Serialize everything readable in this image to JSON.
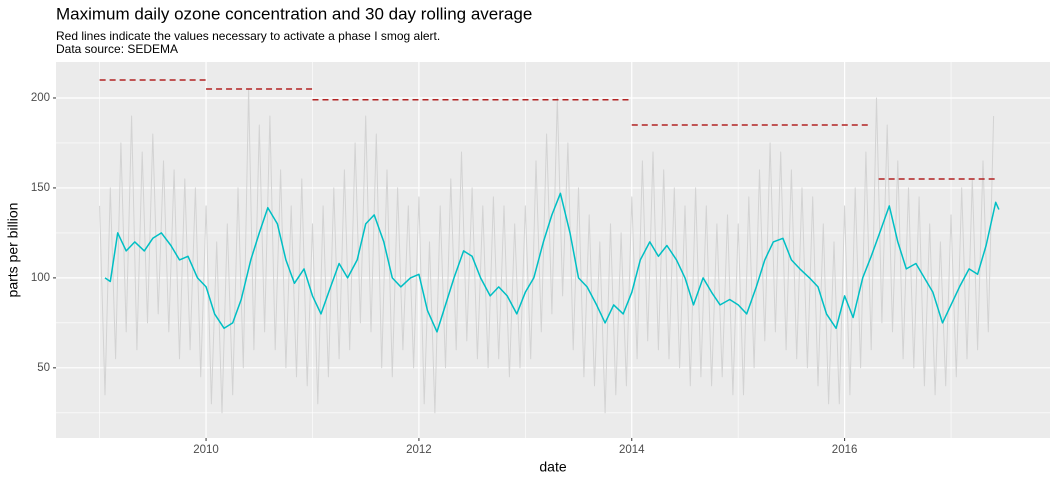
{
  "chart_data": {
    "type": "line",
    "title": "Maximum daily ozone concentration and 30 day rolling average",
    "subtitle": [
      "Red lines indicate the values necessary to activate a phase I smog alert.",
      "Data source: SEDEMA"
    ],
    "xlabel": "date",
    "ylabel": "parts per billion",
    "xlim": [
      2008.59,
      2017.93
    ],
    "ylim": [
      11,
      220
    ],
    "xticks": [
      2010,
      2012,
      2014,
      2016
    ],
    "yticks": [
      50,
      100,
      150,
      200
    ],
    "grid": true,
    "series": [
      {
        "name": "daily maximum",
        "color": "#d3d3d3",
        "x": [
          2009.0,
          2009.05,
          2009.1,
          2009.15,
          2009.2,
          2009.25,
          2009.3,
          2009.35,
          2009.4,
          2009.45,
          2009.5,
          2009.55,
          2009.6,
          2009.65,
          2009.7,
          2009.75,
          2009.8,
          2009.85,
          2009.9,
          2009.95,
          2010.0,
          2010.05,
          2010.1,
          2010.15,
          2010.2,
          2010.25,
          2010.3,
          2010.35,
          2010.4,
          2010.45,
          2010.5,
          2010.55,
          2010.6,
          2010.65,
          2010.7,
          2010.75,
          2010.8,
          2010.85,
          2010.9,
          2010.95,
          2011.0,
          2011.05,
          2011.1,
          2011.15,
          2011.2,
          2011.25,
          2011.3,
          2011.35,
          2011.4,
          2011.45,
          2011.5,
          2011.55,
          2011.6,
          2011.65,
          2011.7,
          2011.75,
          2011.8,
          2011.85,
          2011.9,
          2011.95,
          2012.0,
          2012.05,
          2012.1,
          2012.15,
          2012.2,
          2012.25,
          2012.3,
          2012.35,
          2012.4,
          2012.45,
          2012.5,
          2012.55,
          2012.6,
          2012.65,
          2012.7,
          2012.75,
          2012.8,
          2012.85,
          2012.9,
          2012.95,
          2013.0,
          2013.05,
          2013.1,
          2013.15,
          2013.2,
          2013.25,
          2013.3,
          2013.35,
          2013.4,
          2013.45,
          2013.5,
          2013.55,
          2013.6,
          2013.65,
          2013.7,
          2013.75,
          2013.8,
          2013.85,
          2013.9,
          2013.95,
          2014.0,
          2014.05,
          2014.1,
          2014.15,
          2014.2,
          2014.25,
          2014.3,
          2014.35,
          2014.4,
          2014.45,
          2014.5,
          2014.55,
          2014.6,
          2014.65,
          2014.7,
          2014.75,
          2014.8,
          2014.85,
          2014.9,
          2014.95,
          2015.0,
          2015.05,
          2015.1,
          2015.15,
          2015.2,
          2015.25,
          2015.3,
          2015.35,
          2015.4,
          2015.45,
          2015.5,
          2015.55,
          2015.6,
          2015.65,
          2015.7,
          2015.75,
          2015.8,
          2015.85,
          2015.9,
          2015.95,
          2016.0,
          2016.05,
          2016.1,
          2016.15,
          2016.2,
          2016.25,
          2016.3,
          2016.35,
          2016.4,
          2016.45,
          2016.5,
          2016.55,
          2016.6,
          2016.65,
          2016.7,
          2016.75,
          2016.8,
          2016.85,
          2016.9,
          2016.95,
          2017.0,
          2017.05,
          2017.1,
          2017.15,
          2017.2,
          2017.25,
          2017.3,
          2017.35,
          2017.4
        ],
        "values": [
          140,
          35,
          150,
          55,
          175,
          70,
          190,
          60,
          170,
          75,
          180,
          80,
          165,
          70,
          160,
          55,
          155,
          60,
          150,
          45,
          140,
          30,
          120,
          25,
          130,
          35,
          150,
          50,
          205,
          60,
          185,
          70,
          190,
          60,
          160,
          50,
          140,
          45,
          155,
          40,
          130,
          30,
          140,
          45,
          150,
          55,
          160,
          60,
          175,
          75,
          190,
          70,
          180,
          50,
          160,
          45,
          150,
          60,
          140,
          50,
          145,
          30,
          120,
          25,
          140,
          50,
          155,
          60,
          170,
          65,
          150,
          55,
          140,
          50,
          145,
          55,
          140,
          45,
          130,
          50,
          140,
          55,
          165,
          70,
          180,
          80,
          200,
          90,
          175,
          60,
          150,
          45,
          135,
          40,
          120,
          25,
          130,
          35,
          125,
          40,
          145,
          55,
          165,
          65,
          170,
          60,
          160,
          55,
          150,
          50,
          140,
          40,
          150,
          45,
          140,
          40,
          130,
          45,
          135,
          35,
          130,
          35,
          145,
          50,
          160,
          65,
          175,
          70,
          170,
          60,
          160,
          55,
          150,
          50,
          145,
          40,
          130,
          30,
          120,
          30,
          140,
          35,
          150,
          50,
          170,
          60,
          200,
          75,
          185,
          70,
          165,
          55,
          150,
          50,
          145,
          40,
          130,
          35,
          120,
          40,
          135,
          45,
          150,
          55,
          155,
          60,
          165,
          70,
          190
        ]
      },
      {
        "name": "30 day rolling average",
        "color": "#00bfc4",
        "x": [
          2009.05,
          2009.1,
          2009.17,
          2009.25,
          2009.33,
          2009.42,
          2009.5,
          2009.58,
          2009.67,
          2009.75,
          2009.83,
          2009.92,
          2010.0,
          2010.08,
          2010.17,
          2010.25,
          2010.33,
          2010.42,
          2010.5,
          2010.58,
          2010.67,
          2010.75,
          2010.83,
          2010.92,
          2011.0,
          2011.08,
          2011.17,
          2011.25,
          2011.33,
          2011.42,
          2011.5,
          2011.58,
          2011.67,
          2011.75,
          2011.83,
          2011.92,
          2012.0,
          2012.08,
          2012.17,
          2012.25,
          2012.33,
          2012.42,
          2012.5,
          2012.58,
          2012.67,
          2012.75,
          2012.83,
          2012.92,
          2013.0,
          2013.08,
          2013.17,
          2013.25,
          2013.33,
          2013.42,
          2013.5,
          2013.58,
          2013.67,
          2013.75,
          2013.83,
          2013.92,
          2014.0,
          2014.08,
          2014.17,
          2014.25,
          2014.33,
          2014.42,
          2014.5,
          2014.58,
          2014.67,
          2014.75,
          2014.83,
          2014.92,
          2015.0,
          2015.08,
          2015.17,
          2015.25,
          2015.33,
          2015.42,
          2015.5,
          2015.58,
          2015.67,
          2015.75,
          2015.83,
          2015.92,
          2016.0,
          2016.08,
          2016.17,
          2016.25,
          2016.33,
          2016.42,
          2016.5,
          2016.58,
          2016.67,
          2016.75,
          2016.83,
          2016.92,
          2017.0,
          2017.08,
          2017.17,
          2017.25,
          2017.33,
          2017.42,
          2017.45
        ],
        "values": [
          100,
          98,
          125,
          115,
          120,
          115,
          122,
          125,
          118,
          110,
          112,
          100,
          95,
          80,
          72,
          75,
          88,
          110,
          125,
          139,
          130,
          110,
          97,
          105,
          90,
          80,
          95,
          108,
          100,
          110,
          130,
          135,
          120,
          100,
          95,
          100,
          102,
          82,
          70,
          85,
          100,
          115,
          112,
          100,
          90,
          95,
          90,
          80,
          92,
          100,
          120,
          135,
          147,
          125,
          100,
          95,
          85,
          75,
          85,
          80,
          92,
          110,
          120,
          112,
          118,
          110,
          100,
          85,
          100,
          92,
          85,
          88,
          85,
          80,
          95,
          110,
          120,
          122,
          110,
          105,
          100,
          95,
          80,
          72,
          90,
          78,
          100,
          112,
          125,
          140,
          120,
          105,
          108,
          100,
          92,
          75,
          85,
          95,
          105,
          102,
          118,
          142,
          138
        ]
      }
    ],
    "thresholds": {
      "color": "#b22222",
      "segments": [
        {
          "x": [
            2009.0,
            2010.0
          ],
          "value": 210
        },
        {
          "x": [
            2010.0,
            2011.0
          ],
          "value": 205
        },
        {
          "x": [
            2011.0,
            2014.0
          ],
          "value": 199
        },
        {
          "x": [
            2014.0,
            2016.24
          ],
          "value": 185
        },
        {
          "x": [
            2016.32,
            2017.44
          ],
          "value": 155
        }
      ]
    }
  }
}
